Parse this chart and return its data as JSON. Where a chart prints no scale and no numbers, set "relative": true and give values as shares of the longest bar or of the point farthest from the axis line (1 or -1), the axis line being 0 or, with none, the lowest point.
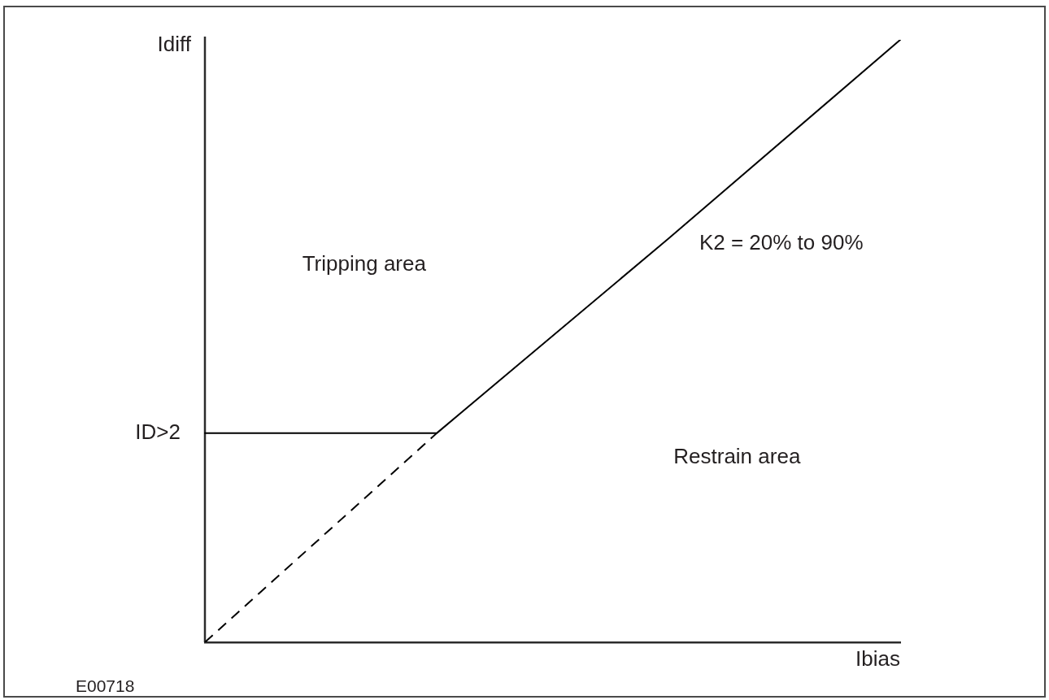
{
  "chart_data": {
    "type": "line",
    "xlabel": "Ibias",
    "ylabel": "Idiff",
    "relative": true,
    "marker": "none",
    "categories": [
      null,
      null,
      null,
      null
    ],
    "series": [
      {
        "color": "#000000",
        "values": [
          0.347,
          0.347,
          0.67,
          1
        ]
      },
      {
        "color": "#000000",
        "values": [
          0,
          0.347,
          null,
          null
        ],
        "line_style": "dashed"
      }
    ],
    "annotations": [
      "ID>2",
      "Tripping area",
      "K2 = 20% to 90%",
      "Restrain area",
      "E00718"
    ]
  }
}
